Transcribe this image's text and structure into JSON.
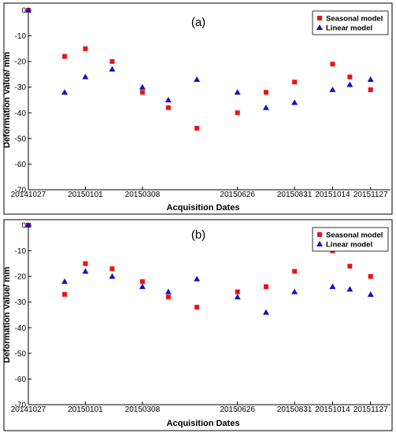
{
  "colors": {
    "seasonal": "#ee1111",
    "linear": "#1111cc",
    "axis": "#000000"
  },
  "chart_data": [
    {
      "type": "scatter",
      "panel_label": "(a)",
      "xlabel": "Acquisition Dates",
      "ylabel": "Deformation Value/ mm",
      "ylim": [
        -70,
        0
      ],
      "yticks": [
        0,
        -10,
        -20,
        -30,
        -40,
        -50,
        -60,
        -70
      ],
      "xlim": [
        "2014-10-27",
        "2015-12-20"
      ],
      "xticks": [
        {
          "label": "20141027",
          "date": "2014-10-27"
        },
        {
          "label": "20150101",
          "date": "2015-01-01"
        },
        {
          "label": "20150308",
          "date": "2015-03-08"
        },
        {
          "label": "20150626",
          "date": "2015-06-26"
        },
        {
          "label": "20150831",
          "date": "2015-08-31"
        },
        {
          "label": "20151014",
          "date": "2015-10-14"
        },
        {
          "label": "20151127",
          "date": "2015-11-27"
        }
      ],
      "legend_position": "top-right",
      "series": [
        {
          "name": "Seasonal model",
          "marker": "square",
          "points": [
            {
              "x": "2014-10-27",
              "y": 0
            },
            {
              "x": "2014-12-08",
              "y": -18
            },
            {
              "x": "2015-01-01",
              "y": -15
            },
            {
              "x": "2015-02-01",
              "y": -20
            },
            {
              "x": "2015-03-08",
              "y": -32
            },
            {
              "x": "2015-04-07",
              "y": -38
            },
            {
              "x": "2015-05-10",
              "y": -46
            },
            {
              "x": "2015-06-26",
              "y": -40
            },
            {
              "x": "2015-07-29",
              "y": -32
            },
            {
              "x": "2015-08-31",
              "y": -28
            },
            {
              "x": "2015-10-14",
              "y": -21
            },
            {
              "x": "2015-11-03",
              "y": -26
            },
            {
              "x": "2015-11-27",
              "y": -31
            }
          ]
        },
        {
          "name": "Linear model",
          "marker": "triangle",
          "points": [
            {
              "x": "2014-10-27",
              "y": 0
            },
            {
              "x": "2014-12-08",
              "y": -32
            },
            {
              "x": "2015-01-01",
              "y": -26
            },
            {
              "x": "2015-02-01",
              "y": -23
            },
            {
              "x": "2015-03-08",
              "y": -30
            },
            {
              "x": "2015-04-07",
              "y": -35
            },
            {
              "x": "2015-05-10",
              "y": -27
            },
            {
              "x": "2015-06-26",
              "y": -32
            },
            {
              "x": "2015-07-29",
              "y": -38
            },
            {
              "x": "2015-08-31",
              "y": -36
            },
            {
              "x": "2015-10-14",
              "y": -31
            },
            {
              "x": "2015-11-03",
              "y": -29
            },
            {
              "x": "2015-11-27",
              "y": -27
            }
          ]
        }
      ]
    },
    {
      "type": "scatter",
      "panel_label": "(b)",
      "xlabel": "Acquisition Dates",
      "ylabel": "Deformation Value/ mm",
      "ylim": [
        -70,
        0
      ],
      "yticks": [
        0,
        -10,
        -20,
        -30,
        -40,
        -50,
        -60,
        -70
      ],
      "xlim": [
        "2014-10-27",
        "2015-12-20"
      ],
      "xticks": [
        {
          "label": "20141027",
          "date": "2014-10-27"
        },
        {
          "label": "20150101",
          "date": "2015-01-01"
        },
        {
          "label": "20150308",
          "date": "2015-03-08"
        },
        {
          "label": "20150626",
          "date": "2015-06-26"
        },
        {
          "label": "20150831",
          "date": "2015-08-31"
        },
        {
          "label": "20151014",
          "date": "2015-10-14"
        },
        {
          "label": "20151127",
          "date": "2015-11-27"
        }
      ],
      "legend_position": "top-right",
      "series": [
        {
          "name": "Seasonal model",
          "marker": "square",
          "points": [
            {
              "x": "2014-10-27",
              "y": 0
            },
            {
              "x": "2014-12-08",
              "y": -27
            },
            {
              "x": "2015-01-01",
              "y": -15
            },
            {
              "x": "2015-02-01",
              "y": -17
            },
            {
              "x": "2015-03-08",
              "y": -22
            },
            {
              "x": "2015-04-07",
              "y": -28
            },
            {
              "x": "2015-05-10",
              "y": -32
            },
            {
              "x": "2015-06-26",
              "y": -26
            },
            {
              "x": "2015-07-29",
              "y": -24
            },
            {
              "x": "2015-08-31",
              "y": -18
            },
            {
              "x": "2015-10-14",
              "y": -10
            },
            {
              "x": "2015-11-03",
              "y": -16
            },
            {
              "x": "2015-11-27",
              "y": -20
            }
          ]
        },
        {
          "name": "Linear model",
          "marker": "triangle",
          "points": [
            {
              "x": "2014-10-27",
              "y": 0
            },
            {
              "x": "2014-12-08",
              "y": -22
            },
            {
              "x": "2015-01-01",
              "y": -18
            },
            {
              "x": "2015-02-01",
              "y": -20
            },
            {
              "x": "2015-03-08",
              "y": -24
            },
            {
              "x": "2015-04-07",
              "y": -26
            },
            {
              "x": "2015-05-10",
              "y": -21
            },
            {
              "x": "2015-06-26",
              "y": -28
            },
            {
              "x": "2015-07-29",
              "y": -34
            },
            {
              "x": "2015-08-31",
              "y": -26
            },
            {
              "x": "2015-10-14",
              "y": -24
            },
            {
              "x": "2015-11-03",
              "y": -25
            },
            {
              "x": "2015-11-27",
              "y": -27
            }
          ]
        }
      ]
    }
  ]
}
